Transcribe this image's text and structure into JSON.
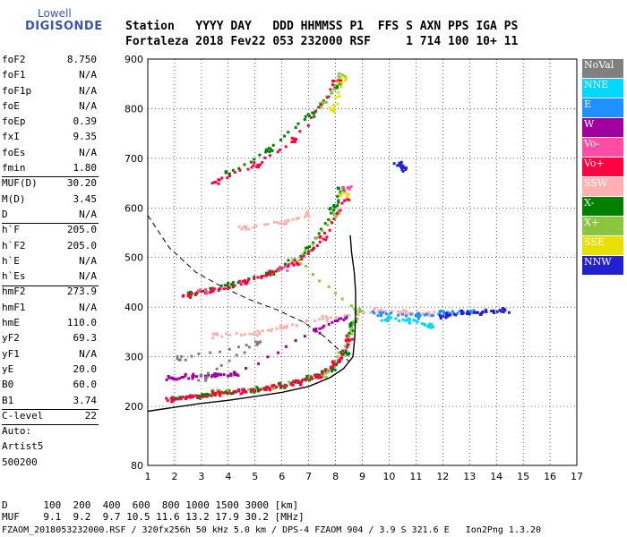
{
  "logo": {
    "line1": "Lowell",
    "line2": "DIGISONDE"
  },
  "header": {
    "line1": "Station   YYYY DAY   DDD HHMMSS P1  FFS S AXN PPS IGA PS",
    "line2": "Fortaleza 2018 Fev22 053 232000 RSF     1 714 100 10+ 11"
  },
  "params": [
    {
      "k": "foF2",
      "v": "8.750"
    },
    {
      "k": "foF1",
      "v": "N/A"
    },
    {
      "k": "foF1p",
      "v": "N/A"
    },
    {
      "k": "foE",
      "v": "N/A"
    },
    {
      "k": "foEp",
      "v": "0.39"
    },
    {
      "k": "fxI",
      "v": "9.35"
    },
    {
      "k": "foEs",
      "v": "N/A"
    },
    {
      "k": "fmin",
      "v": "1.80"
    },
    {
      "k": "MUF(D)",
      "v": "30.20"
    },
    {
      "k": "M(D)",
      "v": "3.45"
    },
    {
      "k": "D",
      "v": "N/A"
    },
    {
      "k": "h`F",
      "v": "205.0"
    },
    {
      "k": "h`F2",
      "v": "205.0"
    },
    {
      "k": "h`E",
      "v": "N/A"
    },
    {
      "k": "h`Es",
      "v": "N/A"
    },
    {
      "k": "hmF2",
      "v": "273.9"
    },
    {
      "k": "hmF1",
      "v": "N/A"
    },
    {
      "k": "hmE",
      "v": "110.0"
    },
    {
      "k": "yF2",
      "v": "69.3"
    },
    {
      "k": "yF1",
      "v": "N/A"
    },
    {
      "k": "yE",
      "v": "20.0"
    },
    {
      "k": "B0",
      "v": "60.0"
    },
    {
      "k": "B1",
      "v": "3.74"
    },
    {
      "k": "C-level",
      "v": "22"
    },
    {
      "k": "Auto:",
      "v": ""
    },
    {
      "k": "Artist5",
      "v": ""
    },
    {
      "k": "500200",
      "v": ""
    }
  ],
  "legend": [
    {
      "label": "NoVal",
      "color": "#808080"
    },
    {
      "label": "NNE",
      "color": "#00d8ff"
    },
    {
      "label": "E",
      "color": "#1e90ff"
    },
    {
      "label": "W",
      "color": "#a000a0"
    },
    {
      "label": "Vo-",
      "color": "#ff4da6"
    },
    {
      "label": "Vo+",
      "color": "#ff0040"
    },
    {
      "label": "SSW",
      "color": "#ffb0b0"
    },
    {
      "label": "X-",
      "color": "#008000"
    },
    {
      "label": "X+",
      "color": "#8cc63f"
    },
    {
      "label": "SSE",
      "color": "#e8e000"
    },
    {
      "label": "NNW",
      "color": "#2020d0"
    }
  ],
  "bottom": {
    "line1": "D      100  200  400  600  800 1000 1500 3000 [km]",
    "line2": "MUF    9.1  9.2  9.7 10.5 11.6 13.2 17.9 30.2 [MHz]"
  },
  "footer": "FZAOM_2018053232000.RSF / 320fx256h 50 kHz 5.0 km / DPS-4 FZAOM 904 / 3.9 S 321.6 E   Ion2Png 1.3.20",
  "chart_data": {
    "type": "scatter",
    "title": "",
    "xlabel": "",
    "ylabel": "",
    "xlim": [
      1,
      17
    ],
    "ylim": [
      80,
      900
    ],
    "xticks": [
      1,
      2,
      3,
      4,
      5,
      6,
      7,
      8,
      9,
      10,
      11,
      12,
      13,
      14,
      15,
      16,
      17
    ],
    "yticks": [
      80,
      200,
      300,
      400,
      500,
      600,
      700,
      800,
      900
    ],
    "grid": true,
    "series": [
      {
        "name": "X-",
        "color": "#008000",
        "points": [
          [
            2.0,
            218
          ],
          [
            3.0,
            224
          ],
          [
            4.0,
            230
          ],
          [
            5.0,
            236
          ],
          [
            6.0,
            244
          ],
          [
            7.0,
            258
          ],
          [
            7.8,
            278
          ],
          [
            8.3,
            310
          ],
          [
            8.6,
            370
          ],
          [
            2.6,
            428
          ],
          [
            4,
            448
          ],
          [
            5.5,
            470
          ],
          [
            7,
            520
          ],
          [
            7.9,
            600
          ],
          [
            8.2,
            640
          ],
          [
            4,
            672
          ],
          [
            5.5,
            720
          ],
          [
            7,
            790
          ],
          [
            8.1,
            850
          ]
        ]
      },
      {
        "name": "X+",
        "color": "#8cc63f",
        "points": [
          [
            3.5,
            230
          ],
          [
            5.5,
            240
          ],
          [
            7.5,
            266
          ],
          [
            8.5,
            340
          ],
          [
            8.8,
            395
          ],
          [
            6.5,
            495
          ],
          [
            8.0,
            590
          ],
          [
            7.5,
            810
          ],
          [
            8.2,
            870
          ]
        ]
      },
      {
        "name": "Vo+",
        "color": "#ff0040",
        "points": [
          [
            1.8,
            217
          ],
          [
            2.5,
            221
          ],
          [
            3.5,
            227
          ],
          [
            4.5,
            233
          ],
          [
            5.5,
            240
          ],
          [
            6.5,
            250
          ],
          [
            7.3,
            265
          ],
          [
            8.0,
            290
          ],
          [
            8.5,
            340
          ],
          [
            2.4,
            427
          ],
          [
            3.5,
            436
          ],
          [
            4.5,
            452
          ],
          [
            5.5,
            470
          ],
          [
            6.5,
            492
          ],
          [
            7.5,
            540
          ],
          [
            8.3,
            620
          ],
          [
            3.5,
            656
          ],
          [
            5,
            690
          ],
          [
            6.5,
            740
          ],
          [
            8,
            855
          ]
        ]
      },
      {
        "name": "Vo-",
        "color": "#ff4da6",
        "points": [
          [
            3.0,
            435
          ],
          [
            6.0,
            480
          ],
          [
            8.4,
            640
          ]
        ]
      },
      {
        "name": "W",
        "color": "#a000a0",
        "points": [
          [
            1.8,
            258
          ],
          [
            2.5,
            262
          ],
          [
            3.5,
            265
          ],
          [
            4.3,
            268
          ],
          [
            7.2,
            355
          ],
          [
            8.2,
            380
          ]
        ]
      },
      {
        "name": "SSW",
        "color": "#ffb0b0",
        "points": [
          [
            3.5,
            345
          ],
          [
            5,
            350
          ],
          [
            6,
            360
          ],
          [
            7.5,
            380
          ],
          [
            9.5,
            395
          ],
          [
            10.5,
            392
          ],
          [
            11.5,
            388
          ],
          [
            4.5,
            560
          ],
          [
            6,
            575
          ],
          [
            7,
            590
          ]
        ]
      },
      {
        "name": "NNE",
        "color": "#00d8ff",
        "points": [
          [
            9.8,
            380
          ],
          [
            10.8,
            375
          ],
          [
            11.5,
            365
          ]
        ]
      },
      {
        "name": "E",
        "color": "#1e90ff",
        "points": [
          [
            9.5,
            390
          ],
          [
            11,
            385
          ],
          [
            12,
            390
          ],
          [
            13,
            395
          ]
        ]
      },
      {
        "name": "NNW",
        "color": "#2020d0",
        "points": [
          [
            12,
            385
          ],
          [
            12.8,
            390
          ],
          [
            13.5,
            392
          ],
          [
            14.3,
            395
          ],
          [
            10.3,
            690
          ],
          [
            10.5,
            680
          ]
        ]
      },
      {
        "name": "NoVal",
        "color": "#808080",
        "points": [
          [
            2.2,
            300
          ],
          [
            5,
            330
          ],
          [
            3,
            260
          ]
        ]
      },
      {
        "name": "SSE",
        "color": "#e8e000",
        "points": [
          [
            7.9,
            800
          ],
          [
            8.2,
            860
          ],
          [
            8.3,
            630
          ]
        ]
      }
    ],
    "profile": {
      "name": "profile",
      "color": "#000000",
      "points": [
        [
          1.0,
          190
        ],
        [
          2.0,
          198
        ],
        [
          3.0,
          206
        ],
        [
          4.0,
          212
        ],
        [
          5.0,
          220
        ],
        [
          6.0,
          228
        ],
        [
          7.0,
          240
        ],
        [
          7.8,
          258
        ],
        [
          8.3,
          276
        ],
        [
          8.65,
          300
        ],
        [
          8.72,
          340
        ],
        [
          8.75,
          390
        ],
        [
          8.75,
          430
        ],
        [
          8.7,
          470
        ],
        [
          8.6,
          510
        ],
        [
          8.55,
          545
        ]
      ]
    },
    "model_curve": {
      "name": "model",
      "color": "#000000",
      "points": [
        [
          1.0,
          585
        ],
        [
          1.8,
          520
        ],
        [
          2.8,
          470
        ],
        [
          3.8,
          440
        ],
        [
          4.8,
          415
        ],
        [
          5.8,
          395
        ],
        [
          6.8,
          370
        ],
        [
          7.6,
          340
        ],
        [
          8.2,
          310
        ],
        [
          8.5,
          290
        ]
      ]
    }
  }
}
